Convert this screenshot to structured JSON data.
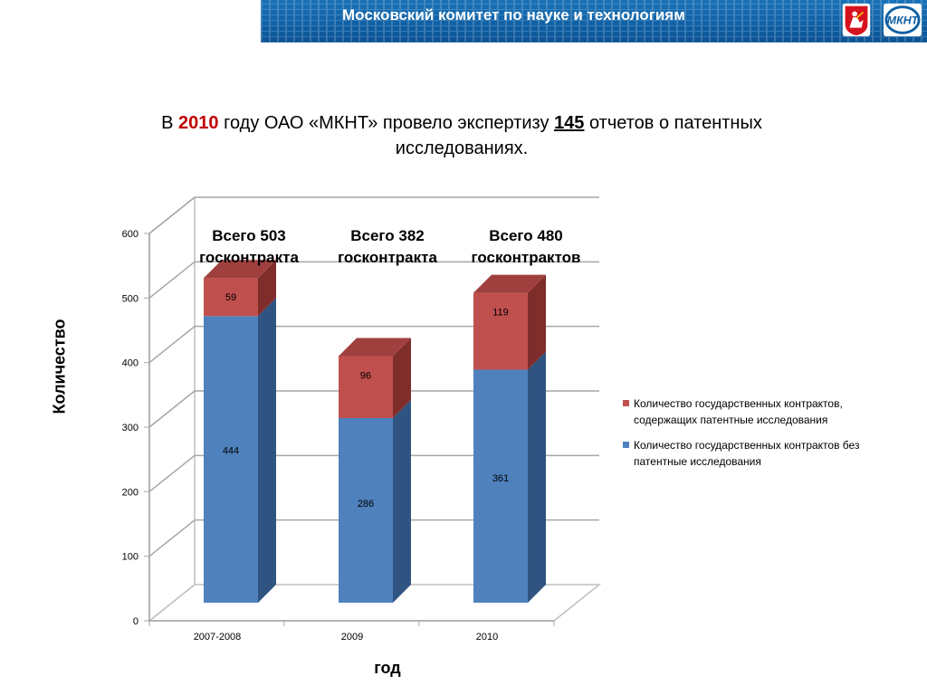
{
  "header": {
    "title": "Московский комитет по науке и технологиям",
    "logo_left": "moscow-coat-of-arms-logo",
    "logo_right": "mknt-logo",
    "logo_right_text": "МКНТ"
  },
  "headline": {
    "pre": "В ",
    "year": "2010",
    "mid": " году  ОАО «МКНТ» провело экспертизу ",
    "count": "145",
    "post": " отчетов о патентных исследованиях."
  },
  "chart_data": {
    "type": "bar",
    "stacked": true,
    "three_d": true,
    "categories": [
      "2007-2008",
      "2009",
      "2010"
    ],
    "series": [
      {
        "name": "Количество государственных контрактов без патентные исследования",
        "values": [
          444,
          286,
          361
        ],
        "color": "#4f81bd"
      },
      {
        "name": "Количество государственных контрактов, содержащих патентные исследования",
        "values": [
          59,
          96,
          119
        ],
        "color": "#c0504d"
      }
    ],
    "totals": [
      "Всего 503 госконтракта",
      "Всего 382 госконтракта",
      "Всего 480 госконтрактов"
    ],
    "xlabel": "год",
    "ylabel": "Количество",
    "ylim": [
      0,
      600
    ],
    "yticks": [
      "0",
      "100",
      "200",
      "300",
      "400",
      "500",
      "600"
    ],
    "grid": true,
    "legend_position": "right"
  }
}
